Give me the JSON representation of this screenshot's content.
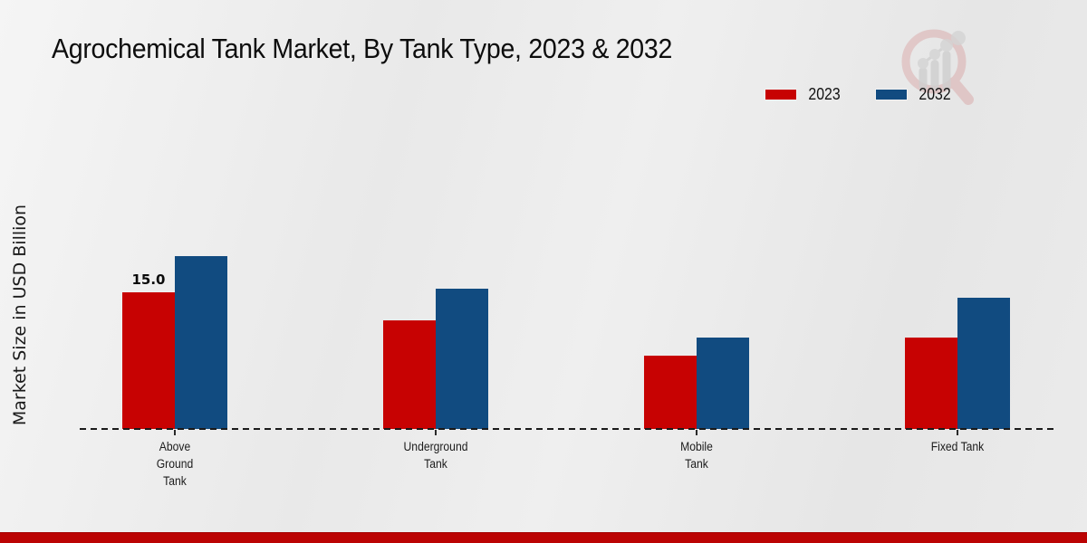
{
  "title": "Agrochemical Tank Market, By Tank Type, 2023 & 2032",
  "y_axis_label": "Market Size in USD Billion",
  "legend": [
    {
      "label": "2023",
      "color": "#c70202"
    },
    {
      "label": "2032",
      "color": "#114b80"
    }
  ],
  "colors": {
    "series_2023": "#c70202",
    "series_2032": "#114b80",
    "footer_band": "#bb0303",
    "axis": "#1a1a1a"
  },
  "chart_data": {
    "type": "bar",
    "title": "Agrochemical Tank Market, By Tank Type, 2023 & 2032",
    "categories": [
      "Above Ground Tank",
      "Underground Tank",
      "Mobile Tank",
      "Fixed Tank"
    ],
    "categories_display": [
      "Above\nGround\nTank",
      "Underground\nTank",
      "Mobile\nTank",
      "Fixed Tank"
    ],
    "series": [
      {
        "name": "2023",
        "color": "#c70202",
        "values": [
          15.0,
          11.9,
          8.0,
          10.0
        ]
      },
      {
        "name": "2032",
        "color": "#114b80",
        "values": [
          19.0,
          15.4,
          10.0,
          14.4
        ]
      }
    ],
    "xlabel": "",
    "ylabel": "Market Size in USD Billion",
    "units": "USD Billion",
    "ylim": [
      0,
      20
    ],
    "grid": false,
    "legend_position": "top-right",
    "baseline_style": "dashed",
    "annotations": [
      {
        "series": "2023",
        "category_index": 0,
        "text": "15.0"
      }
    ]
  },
  "watermark_icon": "magnifier-bar-chart-logo"
}
